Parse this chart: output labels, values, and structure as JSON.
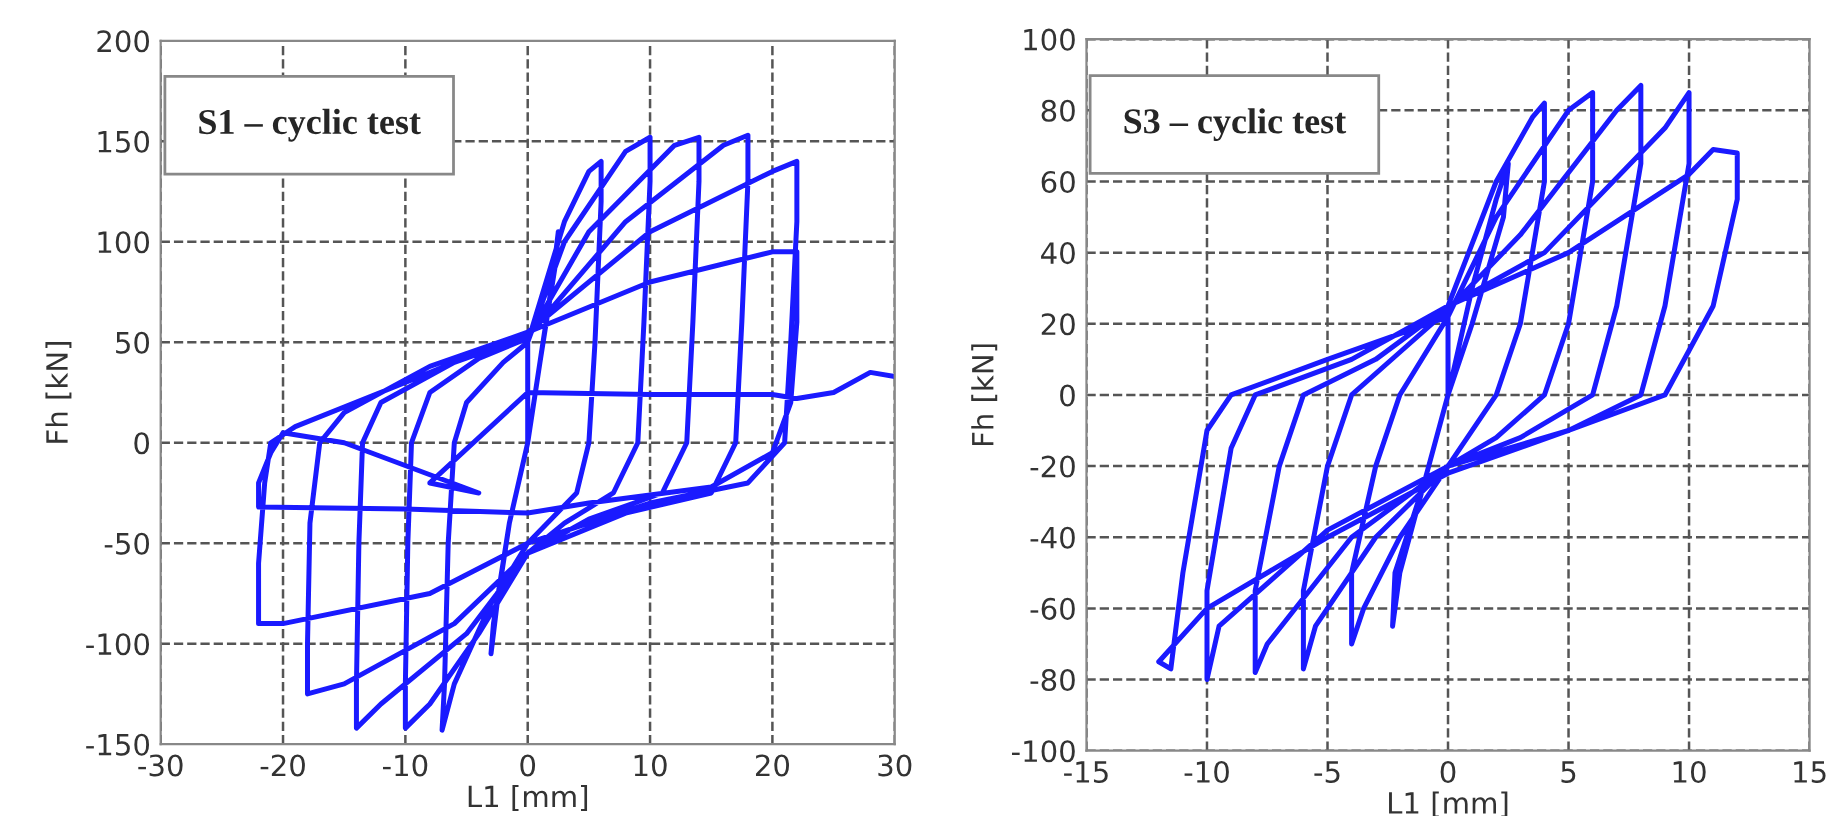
{
  "chart_data": [
    {
      "type": "line",
      "xlabel": "L1 [mm]",
      "ylabel": "Fh [kN]",
      "annotations": [
        "S1 – cyclic test"
      ],
      "xlim": [
        -30,
        30
      ],
      "xticks": [
        -30,
        -20,
        -10,
        0,
        10,
        20,
        30
      ],
      "ylim": [
        -150,
        200
      ],
      "yticks": [
        -150,
        -100,
        -50,
        0,
        50,
        100,
        150,
        200
      ],
      "grid": true,
      "marker": "none",
      "line_style": "solid",
      "series": [
        {
          "color": "#1a1aff",
          "x": [
            0,
            1,
            2,
            2.5,
            2.3,
            1,
            0,
            -1.5,
            -2.5,
            -3,
            -2.8,
            -1.5,
            0,
            0,
            3,
            5,
            6,
            6,
            5.5,
            5,
            4,
            0,
            -3,
            -6,
            -7,
            -6.8,
            -6.5,
            -6,
            -5,
            -2,
            0,
            3,
            8,
            10,
            10,
            9.5,
            9,
            7,
            3,
            0,
            -4,
            -8,
            -10,
            -10,
            -9.8,
            -9.5,
            -8,
            -4,
            0,
            5,
            12,
            14,
            14,
            13.5,
            13,
            11,
            5,
            0,
            -5,
            -12,
            -14,
            -14,
            -13.8,
            -13.5,
            -12,
            -6,
            0,
            8,
            16,
            18,
            18,
            17.5,
            17,
            15,
            8,
            0,
            -6,
            -15,
            -18,
            -18,
            -17.8,
            -17,
            -15,
            -8,
            0,
            10,
            20,
            22,
            22,
            21.5,
            21,
            18,
            10,
            0,
            -8,
            -20,
            -22,
            -22,
            -21.5,
            -21,
            -19,
            -10,
            0,
            10,
            20,
            22,
            22,
            21.5,
            20,
            15,
            5,
            0,
            -10,
            -22,
            -22,
            -21,
            -20,
            -15,
            -4,
            -8,
            0,
            10,
            20,
            22,
            25,
            28,
            30
          ],
          "values": [
            0,
            40,
            80,
            105,
            90,
            40,
            0,
            -40,
            -80,
            -105,
            -90,
            -40,
            0,
            50,
            110,
            135,
            140,
            120,
            50,
            0,
            -25,
            -50,
            -80,
            -120,
            -143,
            -120,
            -50,
            0,
            20,
            40,
            50,
            100,
            145,
            152,
            130,
            60,
            0,
            -25,
            -40,
            -55,
            -95,
            -130,
            -142,
            -120,
            -50,
            0,
            25,
            42,
            52,
            105,
            148,
            152,
            130,
            60,
            0,
            -25,
            -38,
            -55,
            -95,
            -130,
            -142,
            -120,
            -50,
            0,
            20,
            40,
            53,
            110,
            148,
            153,
            130,
            60,
            0,
            -25,
            -35,
            -55,
            -90,
            -120,
            -125,
            -100,
            -40,
            0,
            15,
            38,
            55,
            105,
            135,
            140,
            110,
            50,
            0,
            -20,
            -30,
            -50,
            -75,
            -90,
            -90,
            -60,
            -20,
            0,
            8,
            30,
            55,
            80,
            95,
            95,
            60,
            20,
            -5,
            -22,
            -30,
            -35,
            -33,
            -32,
            -20,
            -5,
            5,
            0,
            -25,
            -20,
            25,
            24,
            24,
            22,
            25,
            35,
            33
          ]
        }
      ]
    },
    {
      "type": "line",
      "xlabel": "L1 [mm]",
      "ylabel": "Fh [kN]",
      "annotations": [
        "S3 – cyclic test"
      ],
      "xlim": [
        -15,
        15
      ],
      "xticks": [
        -15,
        -10,
        -5,
        0,
        5,
        10,
        15
      ],
      "ylim": [
        -100,
        100
      ],
      "yticks": [
        -100,
        -80,
        -60,
        -40,
        -20,
        0,
        20,
        40,
        60,
        80,
        100
      ],
      "grid": true,
      "marker": "none",
      "line_style": "solid",
      "series": [
        {
          "color": "#1a1aff",
          "x": [
            0,
            1,
            2,
            2.5,
            2.3,
            1,
            0,
            -1,
            -2,
            -2.3,
            -2.2,
            -1,
            0,
            0,
            2,
            3.5,
            4,
            4,
            3,
            2,
            0,
            -2,
            -3.5,
            -4,
            -4,
            -3,
            -2,
            0,
            2,
            5,
            6,
            6,
            5,
            4,
            2,
            0,
            -3,
            -5.5,
            -6,
            -6,
            -5,
            -4,
            -2,
            0,
            3,
            7,
            8,
            8,
            7,
            6,
            3,
            0,
            -4,
            -7.5,
            -8,
            -8,
            -7,
            -6,
            -3,
            0,
            4,
            9,
            10,
            10,
            9,
            8,
            5,
            0,
            -5,
            -9.5,
            -10,
            -10,
            -9,
            -8,
            -4,
            0,
            5,
            10,
            11,
            12,
            12,
            11,
            9,
            5,
            0,
            -5,
            -10,
            -12,
            -11.5,
            -11,
            -10,
            -9,
            -5,
            0
          ],
          "values": [
            0,
            30,
            55,
            65,
            50,
            20,
            0,
            -25,
            -50,
            -65,
            -50,
            -25,
            0,
            25,
            60,
            78,
            82,
            60,
            20,
            0,
            -20,
            -40,
            -60,
            -70,
            -50,
            -20,
            0,
            22,
            50,
            80,
            85,
            60,
            20,
            0,
            -12,
            -20,
            -40,
            -65,
            -77,
            -55,
            -20,
            0,
            12,
            24,
            45,
            80,
            87,
            65,
            25,
            0,
            -12,
            -20,
            -40,
            -70,
            -78,
            -55,
            -20,
            0,
            10,
            25,
            40,
            75,
            85,
            65,
            25,
            0,
            -10,
            -20,
            -38,
            -65,
            -80,
            -55,
            -15,
            0,
            10,
            25,
            40,
            62,
            69,
            68,
            55,
            25,
            0,
            -10,
            -22,
            -40,
            -60,
            -75,
            -77,
            -50,
            -10,
            0,
            10,
            22
          ]
        }
      ]
    }
  ]
}
